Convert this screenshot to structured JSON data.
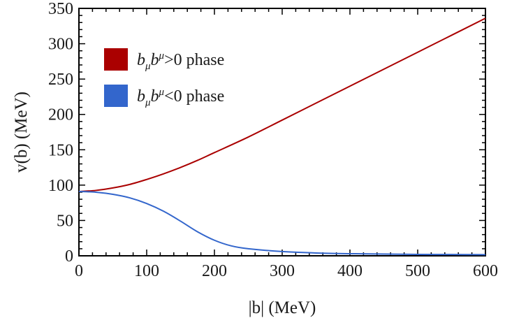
{
  "chart_data": {
    "type": "line",
    "xlabel": "|b| (MeV)",
    "ylabel": "v(b) (MeV)",
    "xlim": [
      0,
      600
    ],
    "ylim": [
      0,
      350
    ],
    "x_ticks": [
      0,
      100,
      200,
      300,
      400,
      500,
      600
    ],
    "y_ticks": [
      0,
      50,
      100,
      150,
      200,
      250,
      300,
      350
    ],
    "grid": false,
    "legend_position": "top-left",
    "series": [
      {
        "name": "b_μ b^μ > 0 phase",
        "legend": {
          "b": "b",
          "sub": "μ",
          "b2": "b",
          "sup": "μ",
          "rest": ">0 phase"
        },
        "color": "#aa0000",
        "x": [
          0,
          25,
          50,
          75,
          100,
          125,
          150,
          175,
          200,
          250,
          300,
          350,
          400,
          450,
          500,
          550,
          600
        ],
        "y": [
          91,
          92.5,
          96,
          101,
          108,
          116,
          125,
          135,
          146,
          168,
          192,
          216,
          240,
          264,
          288,
          312,
          336
        ]
      },
      {
        "name": "b_μ b^μ < 0 phase",
        "legend": {
          "b": "b",
          "sub": "μ",
          "b2": "b",
          "sup": "μ",
          "rest": "<0 phase"
        },
        "color": "#3366cc",
        "x": [
          0,
          25,
          50,
          75,
          100,
          125,
          150,
          175,
          200,
          225,
          250,
          300,
          350,
          400,
          450,
          500,
          550,
          600
        ],
        "y": [
          91,
          90,
          87,
          82,
          74,
          63,
          49,
          34,
          22,
          14,
          10,
          6,
          4,
          3,
          2.5,
          2,
          1.8,
          1.6
        ]
      }
    ]
  }
}
